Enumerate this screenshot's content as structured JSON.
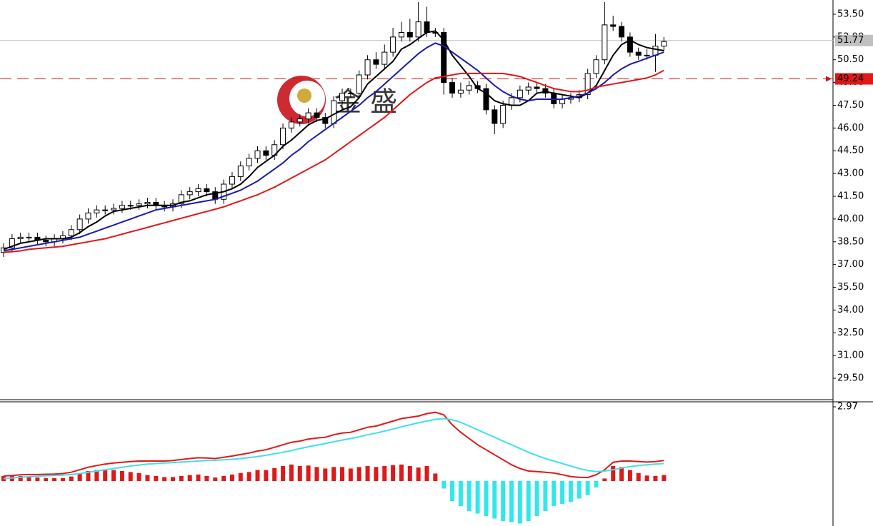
{
  "chart_data": [
    {
      "type": "candlestick",
      "open": [
        37.8,
        38.1,
        38.7,
        38.8,
        38.8,
        38.6,
        38.5,
        38.7,
        38.9,
        39.3,
        40.0,
        40.4,
        40.6,
        40.6,
        40.7,
        40.9,
        40.9,
        41.0,
        41.1,
        40.9,
        40.8,
        41.0,
        41.6,
        41.8,
        42.0,
        41.8,
        41.3,
        42.3,
        42.8,
        43.5,
        44.0,
        44.5,
        44.2,
        44.9,
        46.0,
        46.4,
        46.6,
        47.0,
        46.7,
        46.3,
        47.8,
        48.3,
        48.3,
        49.5,
        50.5,
        50.2,
        51.0,
        52.0,
        52.3,
        52.0,
        53.0,
        52.3,
        52.3,
        49.0,
        48.3,
        48.5,
        48.8,
        48.6,
        47.2,
        46.3,
        47.5,
        48.0,
        48.5,
        48.7,
        48.6,
        48.3,
        47.6,
        47.9,
        48.0,
        48.2,
        49.6,
        50.5,
        52.8,
        52.7,
        52.0,
        51.0,
        50.8,
        50.8,
        51.4
      ],
      "high": [
        38.4,
        39.0,
        39.1,
        39.1,
        39.1,
        38.9,
        39.0,
        39.2,
        39.6,
        40.3,
        40.7,
        40.9,
        40.9,
        41.0,
        41.2,
        41.2,
        41.3,
        41.4,
        41.4,
        41.2,
        41.3,
        41.9,
        42.1,
        42.3,
        42.3,
        42.1,
        42.6,
        43.1,
        43.8,
        44.3,
        44.8,
        44.8,
        45.2,
        46.3,
        46.7,
        46.9,
        47.3,
        47.3,
        47.0,
        48.1,
        48.6,
        48.6,
        49.8,
        50.8,
        51.0,
        51.5,
        52.6,
        53.0,
        53.2,
        54.3,
        54.0,
        52.6,
        52.6,
        49.3,
        49.0,
        49.1,
        49.1,
        48.9,
        47.5,
        47.8,
        48.3,
        48.8,
        49.0,
        49.0,
        48.9,
        48.6,
        48.2,
        48.3,
        48.5,
        49.9,
        50.8,
        54.3,
        53.4,
        53.0,
        52.3,
        51.3,
        51.2,
        52.2,
        52.0
      ],
      "low": [
        37.5,
        37.8,
        38.4,
        38.5,
        38.3,
        38.2,
        38.2,
        38.4,
        38.6,
        39.0,
        39.7,
        40.1,
        40.3,
        40.3,
        40.4,
        40.6,
        40.6,
        40.7,
        40.6,
        40.5,
        40.5,
        40.7,
        41.3,
        41.5,
        41.5,
        41.0,
        41.0,
        42.0,
        42.5,
        43.2,
        43.7,
        43.9,
        43.9,
        44.6,
        45.7,
        46.1,
        46.3,
        46.4,
        46.0,
        46.0,
        47.5,
        48.0,
        48.0,
        49.2,
        49.9,
        49.9,
        50.7,
        51.7,
        51.7,
        51.7,
        52.0,
        52.0,
        48.2,
        48.0,
        48.0,
        48.2,
        48.3,
        46.9,
        45.6,
        46.0,
        47.2,
        47.7,
        48.2,
        48.3,
        48.0,
        47.3,
        47.3,
        47.6,
        47.7,
        47.9,
        49.3,
        50.2,
        52.4,
        51.7,
        50.7,
        50.5,
        50.5,
        49.7,
        51.1
      ],
      "close": [
        38.1,
        38.7,
        38.8,
        38.8,
        38.6,
        38.5,
        38.7,
        38.9,
        39.3,
        40.0,
        40.4,
        40.6,
        40.6,
        40.7,
        40.9,
        40.9,
        41.0,
        41.1,
        40.9,
        40.8,
        41.0,
        41.6,
        41.8,
        42.0,
        41.8,
        41.3,
        42.3,
        42.8,
        43.5,
        44.0,
        44.5,
        44.2,
        44.9,
        46.0,
        46.4,
        46.6,
        47.0,
        46.7,
        46.3,
        47.8,
        48.3,
        48.3,
        49.5,
        50.5,
        50.2,
        51.0,
        52.0,
        52.3,
        52.0,
        53.0,
        52.3,
        52.3,
        49.0,
        48.3,
        48.5,
        48.8,
        48.6,
        47.2,
        46.3,
        47.5,
        48.0,
        48.5,
        48.7,
        48.6,
        48.3,
        47.6,
        47.9,
        48.0,
        48.2,
        49.6,
        50.5,
        52.8,
        52.7,
        52.0,
        51.0,
        50.8,
        50.8,
        51.4,
        51.7
      ],
      "lines": [
        {
          "color": "#000000",
          "values": [
            38.0,
            38.2,
            38.4,
            38.5,
            38.6,
            38.7,
            38.7,
            38.7,
            38.8,
            39.1,
            39.5,
            39.8,
            40.2,
            40.5,
            40.6,
            40.7,
            40.8,
            40.9,
            40.9,
            40.9,
            40.9,
            41.1,
            41.2,
            41.4,
            41.6,
            41.7,
            41.8,
            42.0,
            42.3,
            42.8,
            43.4,
            43.8,
            44.2,
            44.8,
            45.2,
            45.7,
            46.2,
            46.5,
            46.6,
            46.9,
            47.2,
            47.4,
            48.0,
            48.9,
            49.4,
            49.9,
            50.4,
            51.2,
            51.5,
            51.9,
            52.3,
            52.4,
            51.8,
            50.8,
            50.1,
            49.4,
            48.6,
            48.3,
            47.8,
            47.6,
            47.5,
            47.5,
            47.8,
            48.3,
            48.4,
            48.3,
            48.2,
            48.1,
            48.0,
            48.3,
            48.8,
            49.8,
            50.8,
            51.5,
            51.8,
            51.5,
            51.3,
            51.2,
            51.1
          ]
        },
        {
          "color": "#1a1aa8",
          "values": [
            37.9,
            38.0,
            38.1,
            38.2,
            38.3,
            38.4,
            38.5,
            38.6,
            38.7,
            38.8,
            39.0,
            39.2,
            39.4,
            39.6,
            39.8,
            40.0,
            40.2,
            40.4,
            40.6,
            40.7,
            40.8,
            40.9,
            41.0,
            41.1,
            41.2,
            41.3,
            41.5,
            41.7,
            41.9,
            42.2,
            42.5,
            42.9,
            43.3,
            43.7,
            44.2,
            44.6,
            45.1,
            45.5,
            45.9,
            46.3,
            46.7,
            47.1,
            47.5,
            48.0,
            48.4,
            48.9,
            49.4,
            49.9,
            50.4,
            50.9,
            51.3,
            51.6,
            51.4,
            51.0,
            50.6,
            50.2,
            49.8,
            49.3,
            48.8,
            48.4,
            48.1,
            47.9,
            47.8,
            47.9,
            47.9,
            47.9,
            47.9,
            48.0,
            48.1,
            48.3,
            48.6,
            49.0,
            49.5,
            49.9,
            50.2,
            50.4,
            50.6,
            50.8,
            51.0
          ]
        },
        {
          "color": "#e01818",
          "values": [
            37.8,
            37.85,
            37.9,
            38.0,
            38.05,
            38.1,
            38.15,
            38.2,
            38.3,
            38.4,
            38.5,
            38.6,
            38.7,
            38.85,
            39.0,
            39.15,
            39.3,
            39.45,
            39.6,
            39.75,
            39.9,
            40.05,
            40.2,
            40.35,
            40.5,
            40.65,
            40.8,
            41.0,
            41.2,
            41.4,
            41.6,
            41.85,
            42.1,
            42.4,
            42.7,
            43.0,
            43.3,
            43.6,
            43.9,
            44.3,
            44.7,
            45.1,
            45.5,
            45.9,
            46.3,
            46.7,
            47.2,
            47.7,
            48.2,
            48.6,
            49.0,
            49.3,
            49.4,
            49.5,
            49.6,
            49.6,
            49.6,
            49.6,
            49.6,
            49.6,
            49.5,
            49.4,
            49.2,
            49.0,
            48.8,
            48.6,
            48.5,
            48.4,
            48.4,
            48.5,
            48.7,
            48.8,
            48.9,
            49.0,
            49.1,
            49.2,
            49.3,
            49.5,
            49.8
          ]
        }
      ],
      "ylim": [
        28.09,
        54.44
      ],
      "yticks": [
        {
          "value": 53.5,
          "label": "53.50"
        },
        {
          "value": 52,
          "label": "52.00"
        },
        {
          "value": 50.5,
          "label": "50.50"
        },
        {
          "value": 49,
          "label": "49.00"
        },
        {
          "value": 47.5,
          "label": "47.50"
        },
        {
          "value": 46,
          "label": "46.00"
        },
        {
          "value": 44.5,
          "label": "44.50"
        },
        {
          "value": 43,
          "label": "43.00"
        },
        {
          "value": 41.5,
          "label": "41.50"
        },
        {
          "value": 40,
          "label": "40.00"
        },
        {
          "value": 38.5,
          "label": "38.50"
        },
        {
          "value": 37,
          "label": "37.00"
        },
        {
          "value": 35.5,
          "label": "35.50"
        },
        {
          "value": 34,
          "label": "34.00"
        },
        {
          "value": 32.5,
          "label": "32.50"
        },
        {
          "value": 31,
          "label": "31.00"
        },
        {
          "value": 29.5,
          "label": "29.50"
        }
      ],
      "last_price": 51.77,
      "alert_price": 49.24,
      "watermark": "金 盛"
    },
    {
      "type": "macd",
      "lines": [
        {
          "color": "#e01818",
          "values": [
            0.2,
            0.22,
            0.25,
            0.26,
            0.26,
            0.27,
            0.28,
            0.3,
            0.35,
            0.45,
            0.55,
            0.62,
            0.68,
            0.72,
            0.75,
            0.78,
            0.8,
            0.8,
            0.8,
            0.8,
            0.82,
            0.86,
            0.9,
            0.93,
            0.92,
            0.9,
            0.95,
            1.0,
            1.06,
            1.12,
            1.2,
            1.25,
            1.35,
            1.45,
            1.55,
            1.6,
            1.68,
            1.72,
            1.75,
            1.85,
            1.92,
            1.95,
            2.05,
            2.15,
            2.2,
            2.3,
            2.4,
            2.5,
            2.55,
            2.6,
            2.7,
            2.75,
            2.65,
            2.25,
            1.95,
            1.7,
            1.45,
            1.25,
            1.05,
            0.85,
            0.65,
            0.5,
            0.4,
            0.38,
            0.35,
            0.32,
            0.25,
            0.18,
            0.15,
            0.14,
            0.25,
            0.45,
            0.75,
            0.8,
            0.8,
            0.78,
            0.76,
            0.78,
            0.82
          ]
        },
        {
          "color": "#40e0e8",
          "values": [
            0.1,
            0.12,
            0.15,
            0.17,
            0.19,
            0.21,
            0.22,
            0.24,
            0.26,
            0.3,
            0.35,
            0.4,
            0.45,
            0.5,
            0.55,
            0.6,
            0.64,
            0.68,
            0.7,
            0.72,
            0.74,
            0.76,
            0.78,
            0.8,
            0.82,
            0.83,
            0.85,
            0.87,
            0.9,
            0.94,
            0.98,
            1.03,
            1.09,
            1.15,
            1.22,
            1.3,
            1.37,
            1.44,
            1.5,
            1.57,
            1.64,
            1.7,
            1.77,
            1.85,
            1.92,
            2.0,
            2.08,
            2.17,
            2.25,
            2.33,
            2.4,
            2.47,
            2.5,
            2.45,
            2.35,
            2.2,
            2.05,
            1.9,
            1.75,
            1.6,
            1.45,
            1.3,
            1.15,
            1.02,
            0.9,
            0.8,
            0.7,
            0.6,
            0.5,
            0.42,
            0.38,
            0.4,
            0.45,
            0.52,
            0.58,
            0.62,
            0.65,
            0.68,
            0.7
          ]
        }
      ],
      "histogram": {
        "up_color": "#e01818",
        "down_color": "#30e8ec",
        "values": [
          0.2,
          0.2,
          0.2,
          0.18,
          0.14,
          0.12,
          0.12,
          0.12,
          0.18,
          0.3,
          0.4,
          0.44,
          0.46,
          0.44,
          0.4,
          0.36,
          0.32,
          0.24,
          0.2,
          0.16,
          0.16,
          0.2,
          0.24,
          0.26,
          0.2,
          0.14,
          0.2,
          0.26,
          0.32,
          0.36,
          0.44,
          0.44,
          0.52,
          0.6,
          0.66,
          0.6,
          0.62,
          0.56,
          0.5,
          0.56,
          0.56,
          0.5,
          0.56,
          0.6,
          0.56,
          0.6,
          0.64,
          0.66,
          0.6,
          0.54,
          0.6,
          0.3,
          -0.3,
          -0.8,
          -1.0,
          -1.2,
          -1.3,
          -1.4,
          -1.5,
          -1.6,
          -1.65,
          -1.7,
          -1.6,
          -1.4,
          -1.2,
          -1.0,
          -0.92,
          -0.84,
          -0.7,
          -0.56,
          -0.26,
          0.1,
          0.6,
          0.56,
          0.44,
          0.32,
          0.22,
          0.2,
          0.24
        ]
      },
      "ylim": [
        -1.8,
        3.17
      ],
      "yticks": [
        2.97
      ]
    }
  ]
}
